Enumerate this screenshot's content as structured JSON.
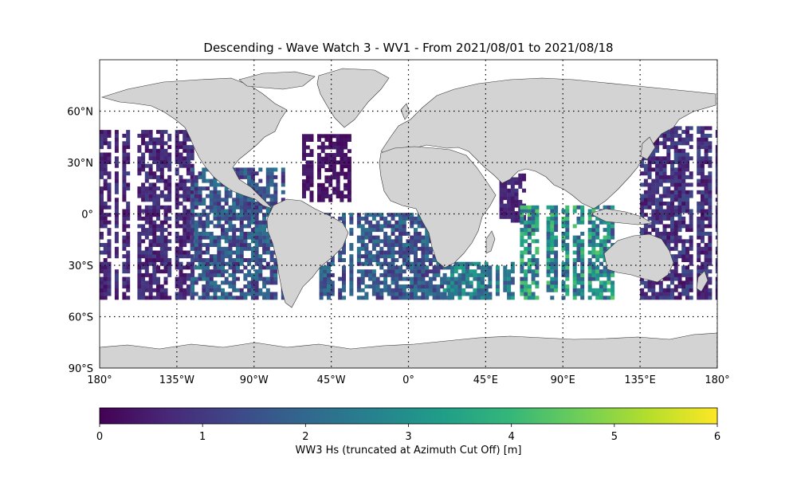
{
  "title": "Descending - Wave Watch 3 - WV1 - From 2021/08/01 to 2021/08/18",
  "map": {
    "projection": "plate-carree",
    "extent": {
      "lon": [
        -180,
        180
      ],
      "lat": [
        -90,
        90
      ]
    },
    "gridlines": "dotted",
    "land_color": "#d3d3d3",
    "colormap": "viridis",
    "lat_ticks": [
      "60°N",
      "30°N",
      "0°",
      "30°S",
      "60°S",
      "90°S"
    ],
    "lon_ticks": [
      "180°",
      "135°W",
      "90°W",
      "45°W",
      "0°",
      "45°E",
      "90°E",
      "135°E",
      "180°"
    ]
  },
  "colorbar": {
    "label": "WW3 Hs (truncated at Azimuth Cut Off) [m]",
    "ticks": [
      "0",
      "1",
      "2",
      "3",
      "4",
      "5",
      "6"
    ],
    "range": [
      0,
      6
    ],
    "colors": [
      "#440154",
      "#482878",
      "#3e4989",
      "#31688e",
      "#26828e",
      "#1f9e89",
      "#35b779",
      "#6ece58",
      "#b5de2b",
      "#fde725"
    ]
  },
  "chart_data": {
    "type": "heatmap",
    "title": "Descending - Wave Watch 3 - WV1 - From 2021/08/01 to 2021/08/18",
    "value_label": "WW3 Hs (truncated at Azimuth Cut Off) [m]",
    "value_range": [
      0,
      6
    ],
    "regions": [
      {
        "lon": [
          -180,
          -127
        ],
        "lat": [
          -50,
          49
        ],
        "hs_range": [
          0.2,
          1.2
        ]
      },
      {
        "lon": [
          -127,
          -72
        ],
        "lat": [
          -50,
          25
        ],
        "hs_range": [
          0.6,
          2.5
        ]
      },
      {
        "lon": [
          -62,
          -35
        ],
        "lat": [
          7,
          45
        ],
        "hs_range": [
          0.1,
          0.5
        ]
      },
      {
        "lon": [
          -52,
          25
        ],
        "lat": [
          -50,
          0
        ],
        "hs_range": [
          0.8,
          2.5
        ]
      },
      {
        "lon": [
          20,
          60
        ],
        "lat": [
          -50,
          -30
        ],
        "hs_range": [
          1.5,
          3.5
        ]
      },
      {
        "lon": [
          53,
          68
        ],
        "lat": [
          -5,
          22
        ],
        "hs_range": [
          0.3,
          1.0
        ]
      },
      {
        "lon": [
          65,
          120
        ],
        "lat": [
          -50,
          5
        ],
        "hs_range": [
          1.2,
          4.5
        ]
      },
      {
        "lon": [
          135,
          180
        ],
        "lat": [
          -50,
          50
        ],
        "hs_range": [
          0.2,
          1.5
        ]
      }
    ]
  }
}
